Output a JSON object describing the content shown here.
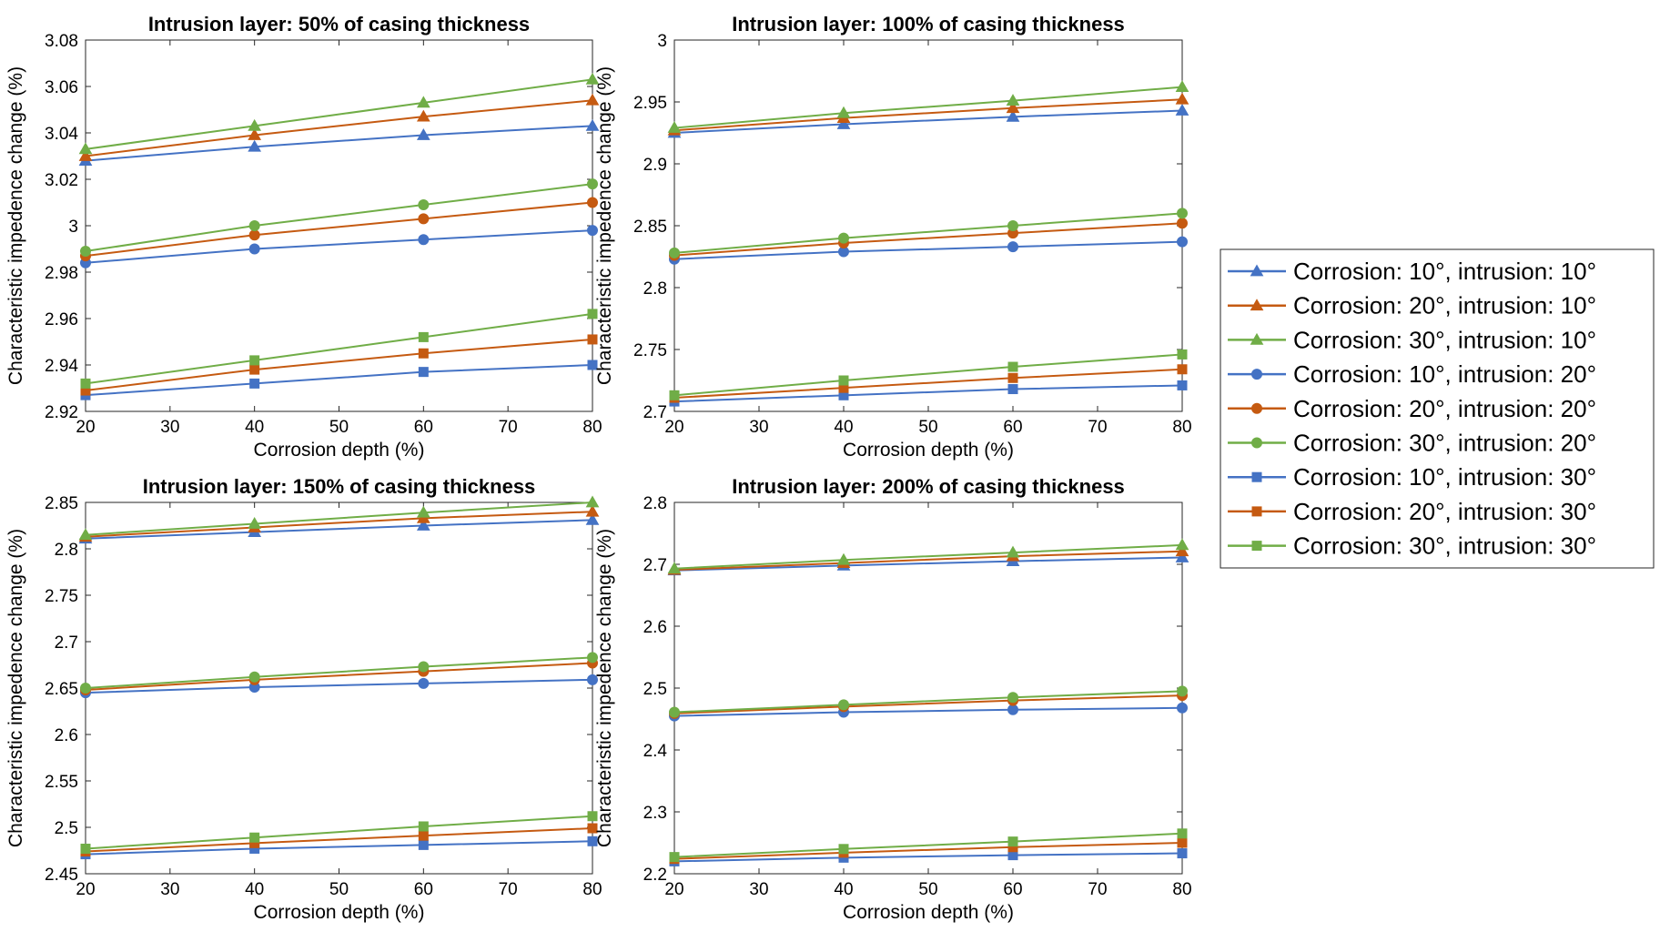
{
  "legend": {
    "entries": [
      {
        "label": "Corrosion: 10°, intrusion: 10°",
        "color": "#4472C4",
        "marker": "triangle"
      },
      {
        "label": "Corrosion: 20°, intrusion: 10°",
        "color": "#C55A11",
        "marker": "triangle"
      },
      {
        "label": "Corrosion: 30°, intrusion: 10°",
        "color": "#70AD47",
        "marker": "triangle"
      },
      {
        "label": "Corrosion: 10°, intrusion: 20°",
        "color": "#4472C4",
        "marker": "circle"
      },
      {
        "label": "Corrosion: 20°, intrusion: 20°",
        "color": "#C55A11",
        "marker": "circle"
      },
      {
        "label": "Corrosion: 30°, intrusion: 20°",
        "color": "#70AD47",
        "marker": "circle"
      },
      {
        "label": "Corrosion: 10°, intrusion: 30°",
        "color": "#4472C4",
        "marker": "square"
      },
      {
        "label": "Corrosion: 20°, intrusion: 30°",
        "color": "#C55A11",
        "marker": "square"
      },
      {
        "label": "Corrosion: 30°, intrusion: 30°",
        "color": "#70AD47",
        "marker": "square"
      }
    ]
  },
  "chart_data": [
    {
      "type": "line",
      "title": "Intrusion layer: 50% of casing thickness",
      "xlabel": "Corrosion depth (%)",
      "ylabel": "Characteristic impedence change (%)",
      "x": [
        20,
        40,
        60,
        80
      ],
      "xlim": [
        20,
        80
      ],
      "ylim": [
        2.92,
        3.08
      ],
      "xticks": [
        "20",
        "30",
        "40",
        "50",
        "60",
        "70",
        "80"
      ],
      "yticks": [
        "2.92",
        "2.94",
        "2.96",
        "2.98",
        "3",
        "3.02",
        "3.04",
        "3.06",
        "3.08"
      ],
      "series": [
        {
          "name": "Corrosion: 10°, intrusion: 10°",
          "values": [
            3.028,
            3.034,
            3.039,
            3.043
          ]
        },
        {
          "name": "Corrosion: 20°, intrusion: 10°",
          "values": [
            3.03,
            3.039,
            3.047,
            3.054
          ]
        },
        {
          "name": "Corrosion: 30°, intrusion: 10°",
          "values": [
            3.033,
            3.043,
            3.053,
            3.063
          ]
        },
        {
          "name": "Corrosion: 10°, intrusion: 20°",
          "values": [
            2.984,
            2.99,
            2.994,
            2.998
          ]
        },
        {
          "name": "Corrosion: 20°, intrusion: 20°",
          "values": [
            2.987,
            2.996,
            3.003,
            3.01
          ]
        },
        {
          "name": "Corrosion: 30°, intrusion: 20°",
          "values": [
            2.989,
            3.0,
            3.009,
            3.018
          ]
        },
        {
          "name": "Corrosion: 10°, intrusion: 30°",
          "values": [
            2.927,
            2.932,
            2.937,
            2.94
          ]
        },
        {
          "name": "Corrosion: 20°, intrusion: 30°",
          "values": [
            2.929,
            2.938,
            2.945,
            2.951
          ]
        },
        {
          "name": "Corrosion: 30°, intrusion: 30°",
          "values": [
            2.932,
            2.942,
            2.952,
            2.962
          ]
        }
      ]
    },
    {
      "type": "line",
      "title": "Intrusion layer: 100% of casing thickness",
      "xlabel": "Corrosion depth (%)",
      "ylabel": "Characteristic impedence change (%)",
      "x": [
        20,
        40,
        60,
        80
      ],
      "xlim": [
        20,
        80
      ],
      "ylim": [
        2.7,
        3.0
      ],
      "xticks": [
        "20",
        "30",
        "40",
        "50",
        "60",
        "70",
        "80"
      ],
      "yticks": [
        "2.7",
        "2.75",
        "2.8",
        "2.85",
        "2.9",
        "2.95",
        "3"
      ],
      "series": [
        {
          "name": "Corrosion: 10°, intrusion: 10°",
          "values": [
            2.925,
            2.932,
            2.938,
            2.943
          ]
        },
        {
          "name": "Corrosion: 20°, intrusion: 10°",
          "values": [
            2.927,
            2.937,
            2.945,
            2.952
          ]
        },
        {
          "name": "Corrosion: 30°, intrusion: 10°",
          "values": [
            2.929,
            2.941,
            2.951,
            2.962
          ]
        },
        {
          "name": "Corrosion: 10°, intrusion: 20°",
          "values": [
            2.823,
            2.829,
            2.833,
            2.837
          ]
        },
        {
          "name": "Corrosion: 20°, intrusion: 20°",
          "values": [
            2.826,
            2.836,
            2.844,
            2.852
          ]
        },
        {
          "name": "Corrosion: 30°, intrusion: 20°",
          "values": [
            2.828,
            2.84,
            2.85,
            2.86
          ]
        },
        {
          "name": "Corrosion: 10°, intrusion: 30°",
          "values": [
            2.708,
            2.713,
            2.718,
            2.721
          ]
        },
        {
          "name": "Corrosion: 20°, intrusion: 30°",
          "values": [
            2.711,
            2.719,
            2.727,
            2.734
          ]
        },
        {
          "name": "Corrosion: 30°, intrusion: 30°",
          "values": [
            2.713,
            2.725,
            2.736,
            2.746
          ]
        }
      ]
    },
    {
      "type": "line",
      "title": "Intrusion layer: 150% of casing thickness",
      "xlabel": "Corrosion depth (%)",
      "ylabel": "Characteristic impedence change (%)",
      "x": [
        20,
        40,
        60,
        80
      ],
      "xlim": [
        20,
        80
      ],
      "ylim": [
        2.45,
        2.85
      ],
      "xticks": [
        "20",
        "30",
        "40",
        "50",
        "60",
        "70",
        "80"
      ],
      "yticks": [
        "2.45",
        "2.5",
        "2.55",
        "2.6",
        "2.65",
        "2.7",
        "2.75",
        "2.8",
        "2.85"
      ],
      "series": [
        {
          "name": "Corrosion: 10°, intrusion: 10°",
          "values": [
            2.811,
            2.818,
            2.825,
            2.831
          ]
        },
        {
          "name": "Corrosion: 20°, intrusion: 10°",
          "values": [
            2.813,
            2.823,
            2.833,
            2.84
          ]
        },
        {
          "name": "Corrosion: 30°, intrusion: 10°",
          "values": [
            2.815,
            2.827,
            2.839,
            2.85
          ]
        },
        {
          "name": "Corrosion: 10°, intrusion: 20°",
          "values": [
            2.645,
            2.651,
            2.655,
            2.659
          ]
        },
        {
          "name": "Corrosion: 20°, intrusion: 20°",
          "values": [
            2.648,
            2.659,
            2.668,
            2.677
          ]
        },
        {
          "name": "Corrosion: 30°, intrusion: 20°",
          "values": [
            2.65,
            2.662,
            2.673,
            2.683
          ]
        },
        {
          "name": "Corrosion: 10°, intrusion: 30°",
          "values": [
            2.471,
            2.477,
            2.481,
            2.485
          ]
        },
        {
          "name": "Corrosion: 20°, intrusion: 30°",
          "values": [
            2.474,
            2.483,
            2.491,
            2.499
          ]
        },
        {
          "name": "Corrosion: 30°, intrusion: 30°",
          "values": [
            2.477,
            2.489,
            2.501,
            2.512
          ]
        }
      ]
    },
    {
      "type": "line",
      "title": "Intrusion layer: 200% of casing thickness",
      "xlabel": "Corrosion depth (%)",
      "ylabel": "Characteristic impedence change (%)",
      "x": [
        20,
        40,
        60,
        80
      ],
      "xlim": [
        20,
        80
      ],
      "ylim": [
        2.2,
        2.8
      ],
      "xticks": [
        "20",
        "30",
        "40",
        "50",
        "60",
        "70",
        "80"
      ],
      "yticks": [
        "2.2",
        "2.3",
        "2.4",
        "2.5",
        "2.6",
        "2.7",
        "2.8"
      ],
      "series": [
        {
          "name": "Corrosion: 10°, intrusion: 10°",
          "values": [
            2.69,
            2.698,
            2.705,
            2.711
          ]
        },
        {
          "name": "Corrosion: 20°, intrusion: 10°",
          "values": [
            2.691,
            2.702,
            2.713,
            2.721
          ]
        },
        {
          "name": "Corrosion: 30°, intrusion: 10°",
          "values": [
            2.693,
            2.707,
            2.719,
            2.731
          ]
        },
        {
          "name": "Corrosion: 10°, intrusion: 20°",
          "values": [
            2.455,
            2.461,
            2.465,
            2.468
          ]
        },
        {
          "name": "Corrosion: 20°, intrusion: 20°",
          "values": [
            2.459,
            2.47,
            2.48,
            2.488
          ]
        },
        {
          "name": "Corrosion: 30°, intrusion: 20°",
          "values": [
            2.461,
            2.473,
            2.485,
            2.495
          ]
        },
        {
          "name": "Corrosion: 10°, intrusion: 30°",
          "values": [
            2.22,
            2.226,
            2.23,
            2.233
          ]
        },
        {
          "name": "Corrosion: 20°, intrusion: 30°",
          "values": [
            2.224,
            2.234,
            2.243,
            2.25
          ]
        },
        {
          "name": "Corrosion: 30°, intrusion: 30°",
          "values": [
            2.227,
            2.24,
            2.252,
            2.265
          ]
        }
      ]
    }
  ]
}
